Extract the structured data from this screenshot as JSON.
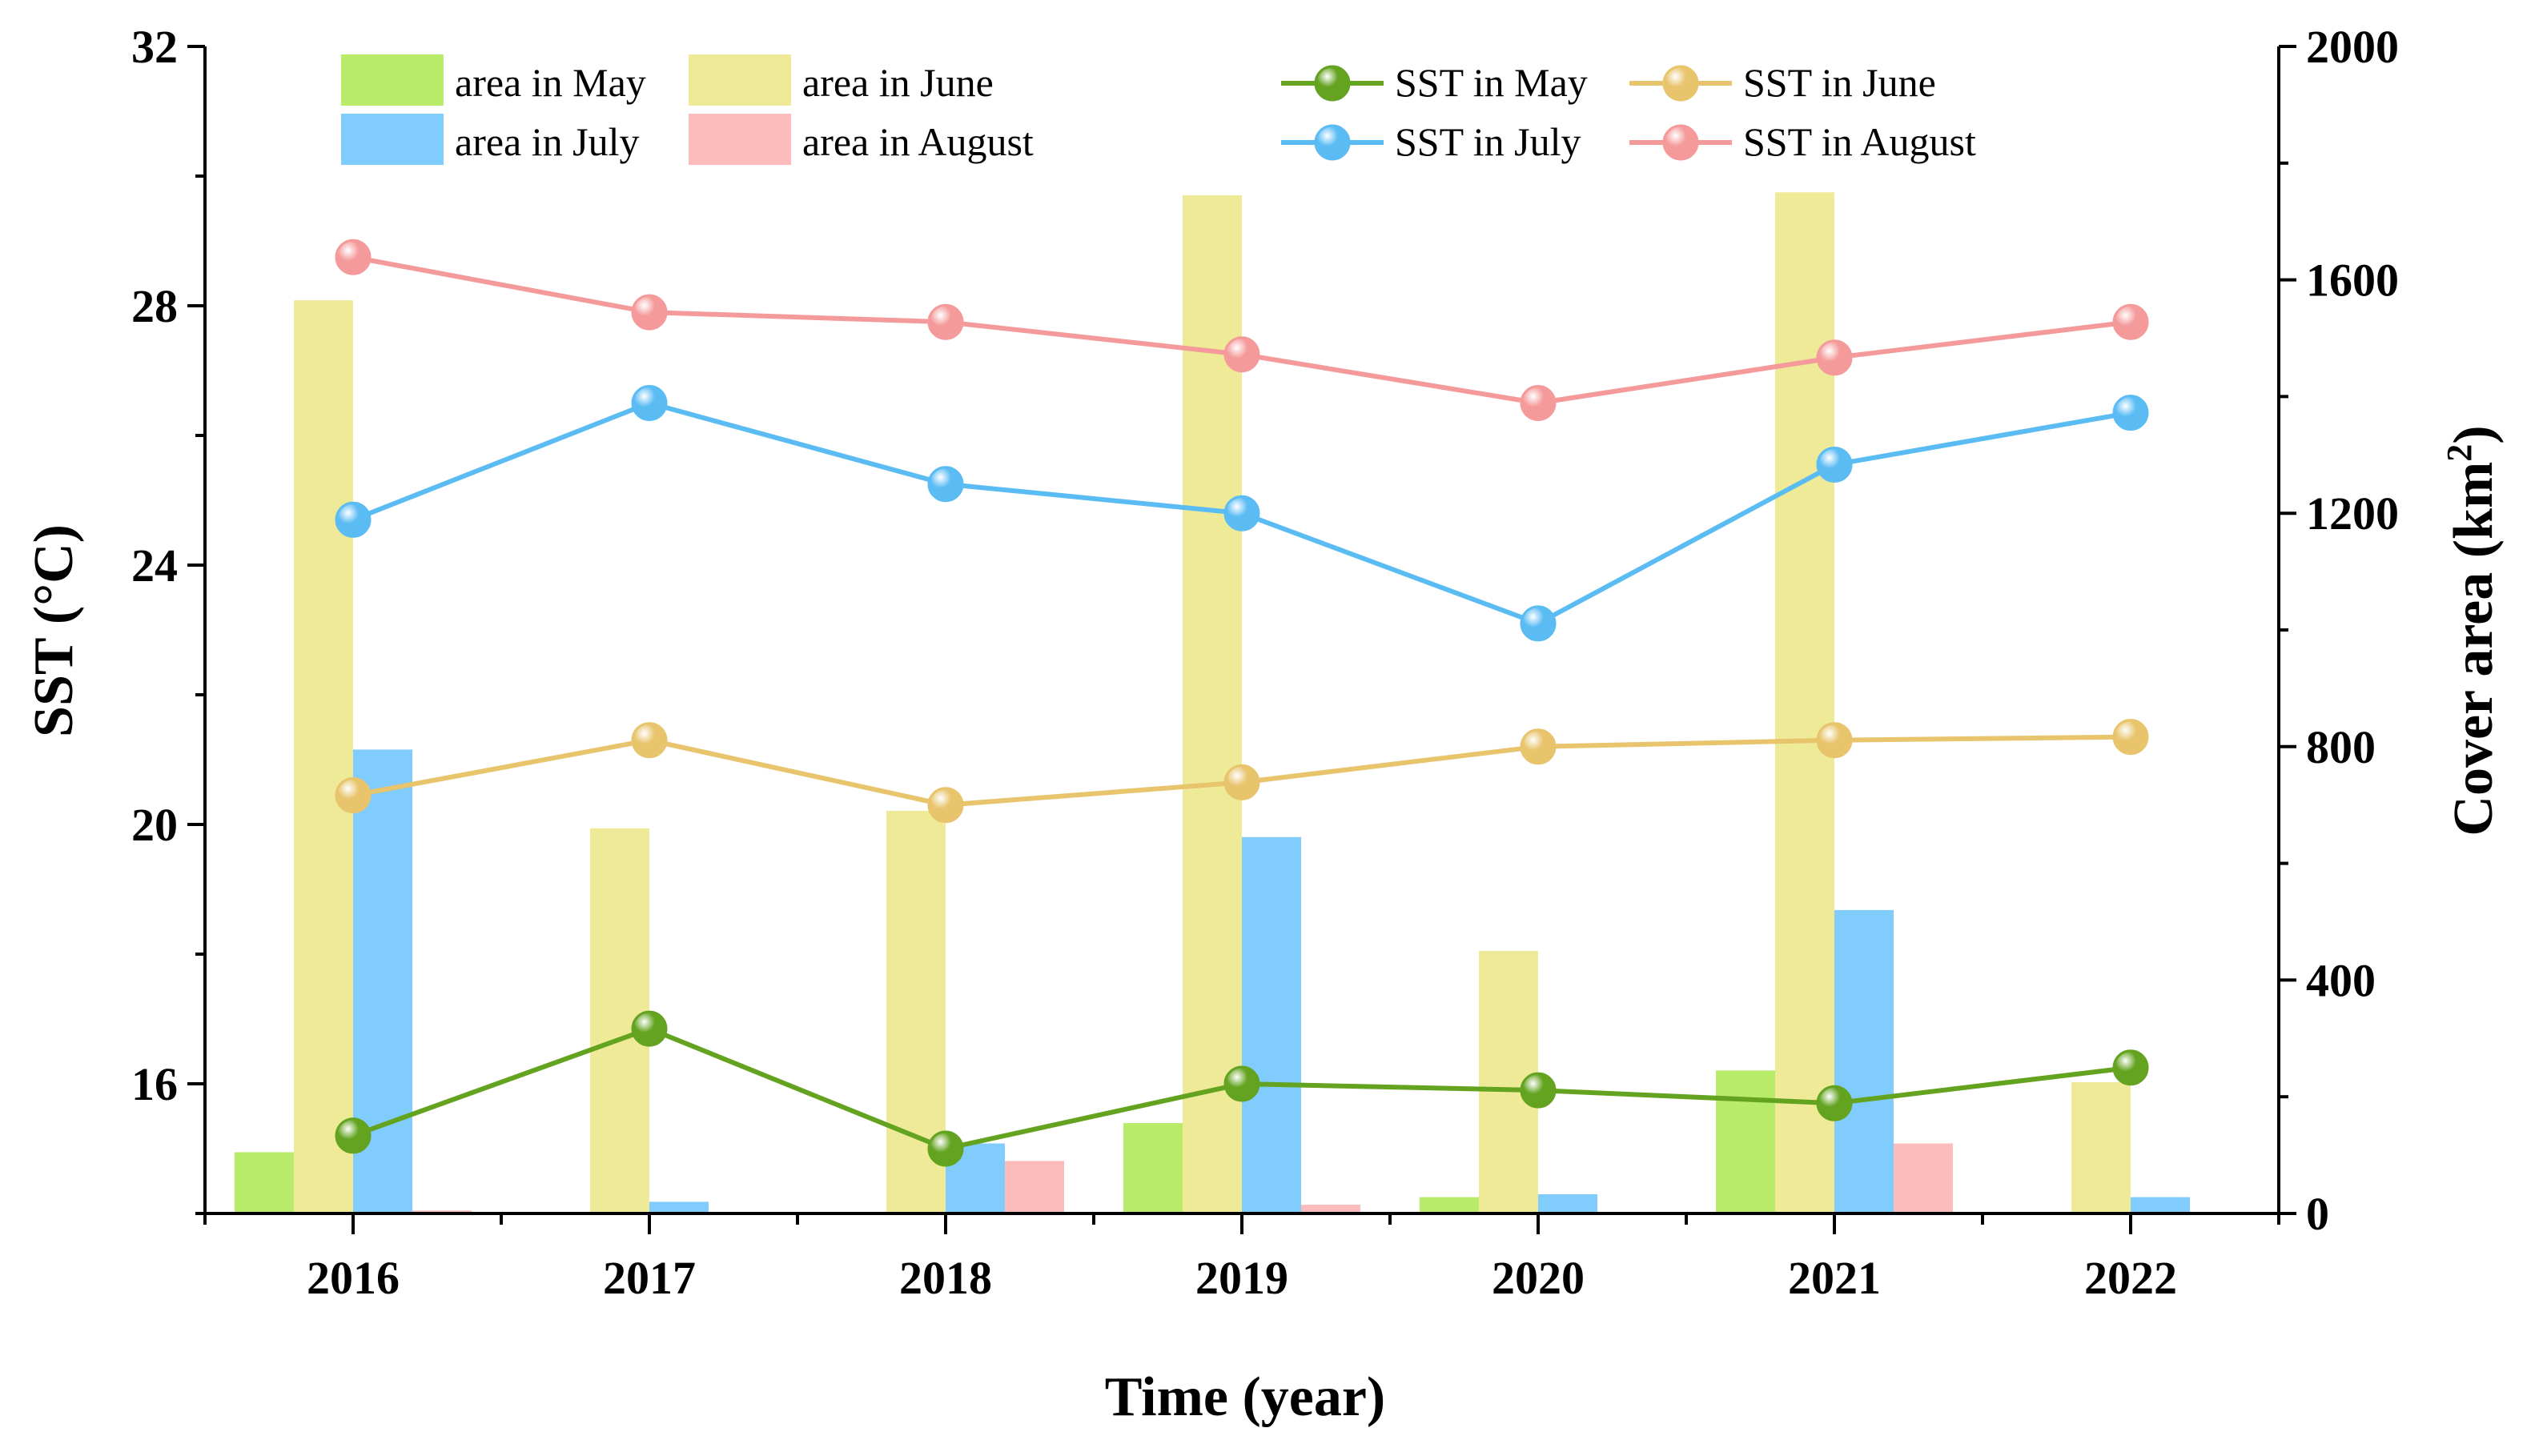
{
  "chart_data": {
    "type": "bar+line",
    "xlabel": "Time (year)",
    "ylabel_left": "SST (°C)",
    "ylabel_right_prefix": "Cover area (km",
    "ylabel_right_sup": "2",
    "ylabel_right_suffix": ")",
    "categories": [
      "2016",
      "2017",
      "2018",
      "2019",
      "2020",
      "2021",
      "2022"
    ],
    "ylim_left": [
      14,
      32
    ],
    "yticks_left": [
      16,
      20,
      24,
      28,
      32
    ],
    "ylim_right": [
      0,
      2000
    ],
    "yticks_right": [
      0,
      400,
      800,
      1200,
      1600,
      2000
    ],
    "bar_series": [
      {
        "name": "area in May",
        "color": "#b8eb6a",
        "values": [
          105,
          0,
          0,
          155,
          28,
          245,
          0
        ]
      },
      {
        "name": "area in June",
        "color": "#eeea98",
        "values": [
          1565,
          660,
          690,
          1745,
          450,
          1750,
          225
        ]
      },
      {
        "name": "area in July",
        "color": "#80ccfd",
        "values": [
          795,
          20,
          120,
          645,
          33,
          520,
          28
        ]
      },
      {
        "name": "area in August",
        "color": "#fdbcbc",
        "values": [
          5,
          0,
          90,
          15,
          0,
          120,
          0
        ]
      }
    ],
    "line_series": [
      {
        "name": "SST in May",
        "color": "#63a320",
        "values": [
          15.2,
          16.85,
          15.0,
          16.0,
          15.9,
          15.7,
          16.25
        ]
      },
      {
        "name": "SST in June",
        "color": "#e8c46c",
        "values": [
          20.45,
          21.3,
          20.3,
          20.65,
          21.2,
          21.3,
          21.35
        ]
      },
      {
        "name": "SST in July",
        "color": "#5bbcf4",
        "values": [
          24.7,
          26.5,
          25.25,
          24.8,
          23.1,
          25.55,
          26.35
        ]
      },
      {
        "name": "SST in August",
        "color": "#f59a9a",
        "values": [
          28.75,
          27.9,
          27.75,
          27.25,
          26.5,
          27.2,
          27.75
        ]
      }
    ]
  }
}
